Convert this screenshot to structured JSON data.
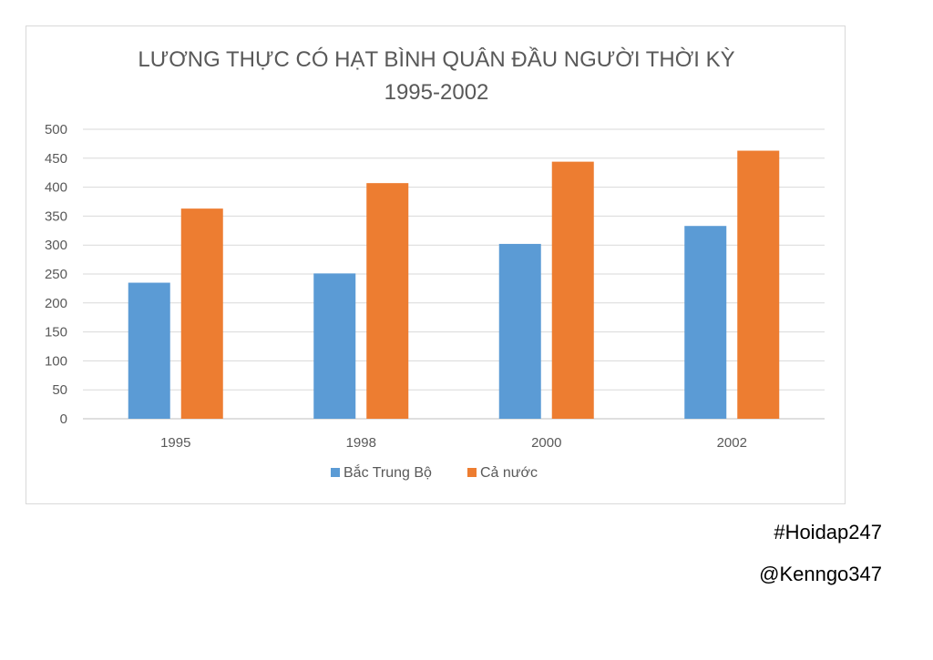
{
  "chart_data": {
    "type": "bar",
    "title_lines": [
      "LƯƠNG THỰC CÓ HẠT BÌNH QUÂN ĐẦU NGƯỜI THỜI KỲ",
      "1995-2002"
    ],
    "categories": [
      "1995",
      "1998",
      "2000",
      "2002"
    ],
    "series": [
      {
        "name": "Bắc Trung Bộ",
        "values": [
          235,
          251,
          302,
          333
        ],
        "color": "#5b9bd5"
      },
      {
        "name": "Cả nước",
        "values": [
          363,
          407,
          444,
          463
        ],
        "color": "#ed7d31"
      }
    ],
    "ylim": [
      0,
      500
    ],
    "yticks": [
      0,
      50,
      100,
      150,
      200,
      250,
      300,
      350,
      400,
      450,
      500
    ],
    "grid": true,
    "legend_position": "bottom"
  },
  "watermarks": {
    "tag1": "#Hoidap247",
    "tag2": "@Kenngo347"
  }
}
